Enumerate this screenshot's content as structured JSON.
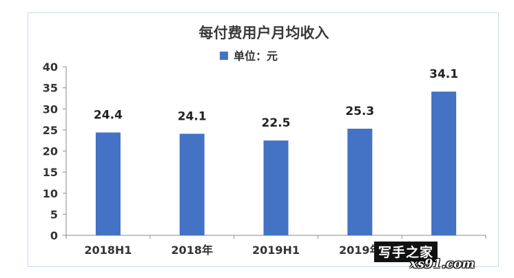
{
  "chart_data": {
    "type": "bar",
    "title": "每付费用户月均收入",
    "legend": {
      "label": "单位：元",
      "position": "top-center"
    },
    "categories": [
      "2018H1",
      "2018年",
      "2019H1",
      "2019年",
      ""
    ],
    "series": [
      {
        "name": "单位：元",
        "values": [
          24.4,
          24.1,
          22.5,
          25.3,
          34.1
        ],
        "color": "#4472c4"
      }
    ],
    "data_labels": [
      "24.4",
      "24.1",
      "22.5",
      "25.3",
      "34.1"
    ],
    "ylim": [
      0,
      40
    ],
    "yticks": [
      0,
      5,
      10,
      15,
      20,
      25,
      30,
      35,
      40
    ],
    "ytick_labels": [
      "0",
      "5",
      "10",
      "15",
      "20",
      "25",
      "30",
      "35",
      "40"
    ],
    "grid": false
  },
  "watermark": {
    "brand": "写手之家",
    "site": "xs91.com"
  }
}
